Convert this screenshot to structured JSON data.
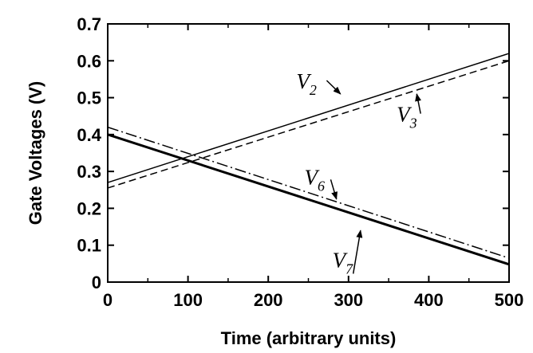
{
  "chart_data": {
    "type": "line",
    "title": "",
    "xlabel": "Time (arbitrary units)",
    "ylabel": "Gate Voltages (V)",
    "xlim": [
      0,
      500
    ],
    "ylim": [
      0,
      0.7
    ],
    "x_ticks": [
      "0",
      "100",
      "200",
      "300",
      "400",
      "500"
    ],
    "y_ticks": [
      "0",
      "0.1",
      "0.2",
      "0.3",
      "0.4",
      "0.5",
      "0.6",
      "0.7"
    ],
    "grid": false,
    "legend": "none",
    "series": [
      {
        "name": "V2",
        "label_main": "V",
        "label_sub": "2",
        "line_style": "solid",
        "line_weight": "thin",
        "x": [
          0,
          500
        ],
        "values": [
          0.27,
          0.62
        ]
      },
      {
        "name": "V3",
        "label_main": "V",
        "label_sub": "3",
        "line_style": "dashed",
        "line_weight": "thin",
        "x": [
          0,
          500
        ],
        "values": [
          0.255,
          0.6
        ]
      },
      {
        "name": "V6",
        "label_main": "V",
        "label_sub": "6",
        "line_style": "dash-dot",
        "line_weight": "thin",
        "x": [
          0,
          500
        ],
        "values": [
          0.42,
          0.065
        ]
      },
      {
        "name": "V7",
        "label_main": "V",
        "label_sub": "7",
        "line_style": "solid",
        "line_weight": "thick",
        "x": [
          0,
          500
        ],
        "values": [
          0.4,
          0.048
        ]
      }
    ],
    "annotations": [
      {
        "series": "V2",
        "text_x": 235,
        "text_y": 0.525,
        "arrow_to_x": 290,
        "arrow_to_y": 0.51
      },
      {
        "series": "V3",
        "text_x": 360,
        "text_y": 0.435,
        "arrow_to_x": 385,
        "arrow_to_y": 0.51
      },
      {
        "series": "V6",
        "text_x": 245,
        "text_y": 0.265,
        "arrow_to_x": 285,
        "arrow_to_y": 0.225
      },
      {
        "series": "V7",
        "text_x": 280,
        "text_y": 0.04,
        "arrow_to_x": 315,
        "arrow_to_y": 0.14
      }
    ],
    "colors": {
      "line": "#000000",
      "axis": "#000000",
      "background": "#ffffff"
    }
  }
}
